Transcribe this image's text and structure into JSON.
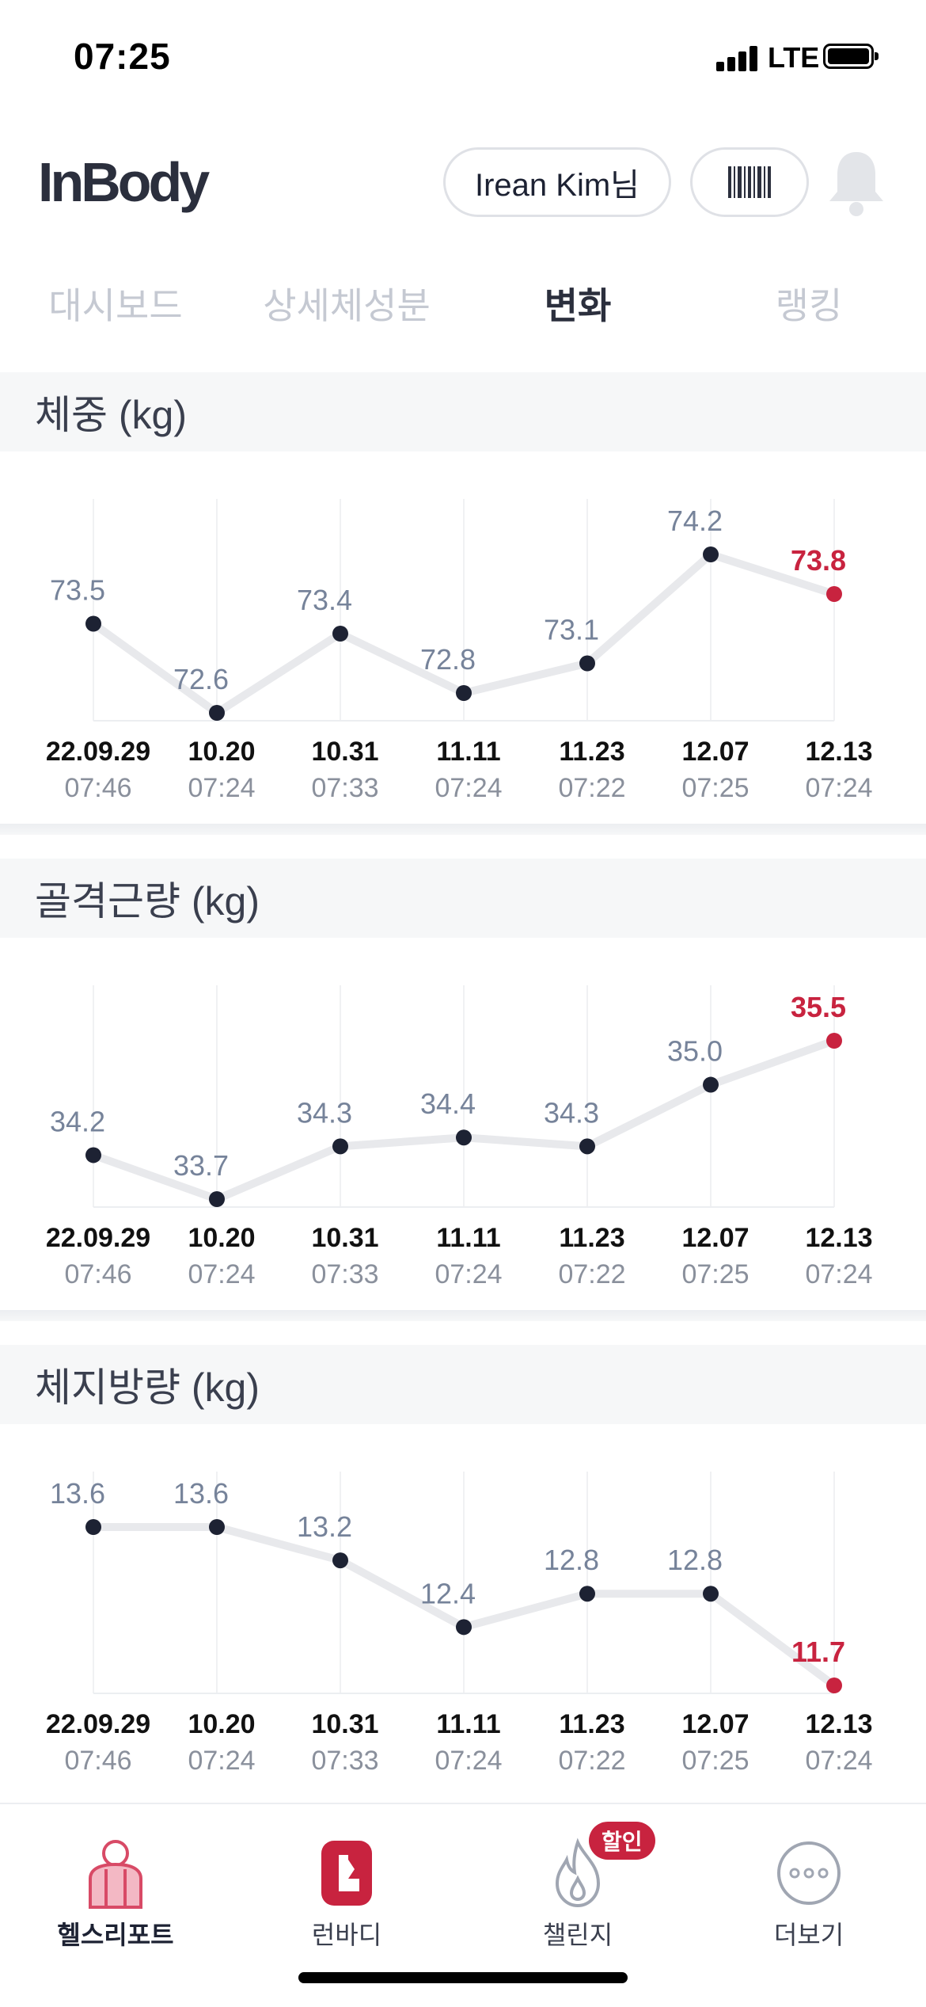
{
  "status_bar": {
    "time": "07:25",
    "network": "LTE"
  },
  "header": {
    "logo": "InBody",
    "user_label": "Irean Kim님"
  },
  "tabs": [
    {
      "label": "대시보드",
      "active": false
    },
    {
      "label": "상세체성분",
      "active": false
    },
    {
      "label": "변화",
      "active": true
    },
    {
      "label": "랭킹",
      "active": false
    }
  ],
  "colors": {
    "accent_red": "#c8233f",
    "point": "#1d2233",
    "line": "#e8e9ec",
    "value_text": "#76839a"
  },
  "chart_data": [
    {
      "type": "line",
      "title": "체중 (kg)",
      "x": [
        "22.09.29",
        "10.20",
        "10.31",
        "11.11",
        "11.23",
        "12.07",
        "12.13"
      ],
      "times": [
        "07:46",
        "07:24",
        "07:33",
        "07:24",
        "07:22",
        "07:25",
        "07:24"
      ],
      "values": [
        73.5,
        72.6,
        73.4,
        72.8,
        73.1,
        74.2,
        73.8
      ],
      "labels": [
        "73.5",
        "72.6",
        "73.4",
        "72.8",
        "73.1",
        "74.2",
        "73.8"
      ],
      "highlight_last": true
    },
    {
      "type": "line",
      "title": "골격근량 (kg)",
      "x": [
        "22.09.29",
        "10.20",
        "10.31",
        "11.11",
        "11.23",
        "12.07",
        "12.13"
      ],
      "times": [
        "07:46",
        "07:24",
        "07:33",
        "07:24",
        "07:22",
        "07:25",
        "07:24"
      ],
      "values": [
        34.2,
        33.7,
        34.3,
        34.4,
        34.3,
        35.0,
        35.5
      ],
      "labels": [
        "34.2",
        "33.7",
        "34.3",
        "34.4",
        "34.3",
        "35.0",
        "35.5"
      ],
      "highlight_last": true
    },
    {
      "type": "line",
      "title": "체지방량 (kg)",
      "x": [
        "22.09.29",
        "10.20",
        "10.31",
        "11.11",
        "11.23",
        "12.07",
        "12.13"
      ],
      "times": [
        "07:46",
        "07:24",
        "07:33",
        "07:24",
        "07:22",
        "07:25",
        "07:24"
      ],
      "values": [
        13.6,
        13.6,
        13.2,
        12.4,
        12.8,
        12.8,
        11.7
      ],
      "labels": [
        "13.6",
        "13.6",
        "13.2",
        "12.4",
        "12.8",
        "12.8",
        "11.7"
      ],
      "highlight_last": true
    }
  ],
  "bottom_nav": [
    {
      "label": "헬스리포트",
      "icon": "health-report-icon",
      "active": true
    },
    {
      "label": "런바디",
      "icon": "runbody-icon",
      "active": false
    },
    {
      "label": "챌린지",
      "icon": "challenge-flame-icon",
      "active": false,
      "badge": "할인"
    },
    {
      "label": "더보기",
      "icon": "more-dots-icon",
      "active": false
    }
  ]
}
